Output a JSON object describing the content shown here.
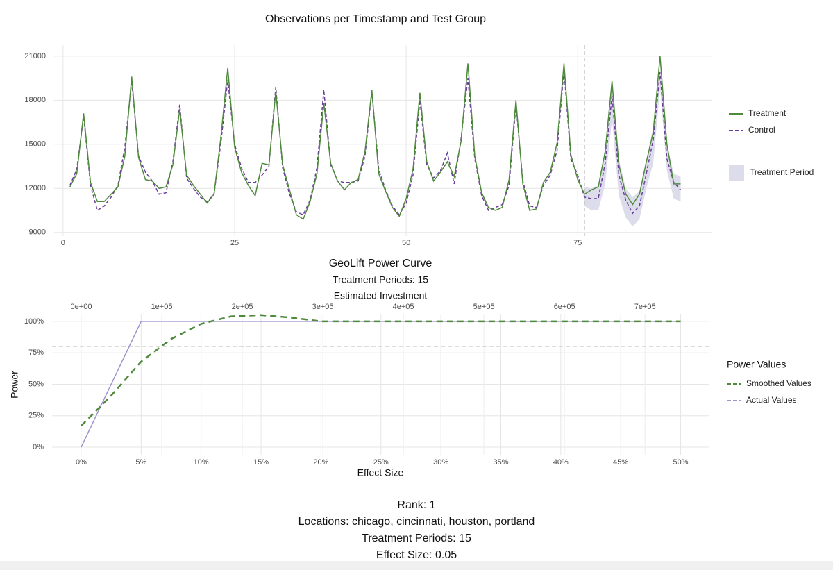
{
  "chart_data": [
    {
      "type": "line",
      "title": "Observations per Timestamp and Test Group",
      "x": [
        1,
        2,
        3,
        4,
        5,
        6,
        7,
        8,
        9,
        10,
        11,
        12,
        13,
        14,
        15,
        16,
        17,
        18,
        19,
        20,
        21,
        22,
        23,
        24,
        25,
        26,
        27,
        28,
        29,
        30,
        31,
        32,
        33,
        34,
        35,
        36,
        37,
        38,
        39,
        40,
        41,
        42,
        43,
        44,
        45,
        46,
        47,
        48,
        49,
        50,
        51,
        52,
        53,
        54,
        55,
        56,
        57,
        58,
        59,
        60,
        61,
        62,
        63,
        64,
        65,
        66,
        67,
        68,
        69,
        70,
        71,
        72,
        73,
        74,
        75,
        76,
        77,
        78,
        79,
        80,
        81,
        82,
        83,
        84,
        85,
        86,
        87,
        88,
        89,
        90
      ],
      "series": [
        {
          "name": "Treatment",
          "color": "#4f8a3c",
          "dashed": false,
          "values": [
            12100,
            13000,
            17100,
            12400,
            11100,
            11100,
            11600,
            12100,
            14200,
            19600,
            14100,
            12600,
            12500,
            12000,
            12100,
            13600,
            17400,
            12900,
            12200,
            11600,
            11000,
            11600,
            15500,
            20200,
            14800,
            13100,
            12200,
            11500,
            13700,
            13600,
            18600,
            13600,
            11900,
            10200,
            9900,
            11100,
            13000,
            17800,
            13700,
            12500,
            11900,
            12400,
            12600,
            14500,
            18700,
            13000,
            11800,
            10700,
            10100,
            11300,
            13300,
            18500,
            13800,
            12500,
            13100,
            13800,
            12800,
            15200,
            20500,
            14200,
            11700,
            10700,
            10500,
            10700,
            12600,
            18000,
            12300,
            10500,
            10600,
            12400,
            13100,
            15100,
            20500,
            14300,
            12600,
            11600,
            11900,
            12100,
            14500,
            19300,
            13600,
            11600,
            10900,
            11600,
            13800,
            15800,
            21000,
            15000,
            12300,
            12300
          ]
        },
        {
          "name": "Control",
          "color": "#6a3d9a",
          "dashed": true,
          "values": [
            12200,
            13300,
            16900,
            12200,
            10500,
            10800,
            11400,
            12200,
            14800,
            19300,
            14200,
            13100,
            12500,
            11600,
            11700,
            13800,
            17700,
            12700,
            12000,
            11400,
            11100,
            11600,
            15100,
            19400,
            15000,
            13400,
            12400,
            12400,
            12900,
            13500,
            18900,
            13400,
            11600,
            10400,
            10200,
            11200,
            13400,
            18700,
            13600,
            12500,
            12400,
            12400,
            12500,
            14200,
            18600,
            13300,
            11900,
            10800,
            10200,
            11000,
            12900,
            18000,
            13600,
            12700,
            13200,
            14400,
            12300,
            15400,
            19500,
            14000,
            11500,
            10500,
            10700,
            10900,
            12200,
            17700,
            12500,
            10800,
            10700,
            12200,
            12900,
            14600,
            20100,
            14000,
            12900,
            11400,
            11300,
            11300,
            13700,
            18300,
            12900,
            11200,
            10300,
            10800,
            13000,
            15300,
            19900,
            14000,
            12400,
            11900
          ]
        }
      ],
      "band": {
        "name": "Treatment Period",
        "color": "#dcdcea",
        "x": [
          76,
          77,
          78,
          79,
          80,
          81,
          82,
          83,
          84,
          85,
          86,
          87,
          88,
          89,
          90
        ],
        "lower": [
          10800,
          10500,
          10500,
          12300,
          16700,
          11500,
          10000,
          9400,
          9900,
          12000,
          13700,
          18800,
          13200,
          11300,
          11100
        ],
        "upper": [
          12100,
          12000,
          12200,
          14700,
          19000,
          14000,
          12000,
          11400,
          11800,
          13900,
          16200,
          20200,
          15000,
          13000,
          12800
        ]
      },
      "vline": 76,
      "xlim": [
        -1.3,
        94.5
      ],
      "xticks": [
        0,
        25,
        50,
        75
      ],
      "ylim": [
        8750,
        21750
      ],
      "yticks": [
        9000,
        12000,
        15000,
        18000,
        21000
      ],
      "grid": true,
      "legend": "right"
    },
    {
      "type": "line",
      "title": "GeoLift Power Curve",
      "subtitle": "Treatment Periods: 15",
      "x_label": "Effect Size",
      "y_label": "Power",
      "x2_label": "Estimated Investment",
      "legend_title": "Power Values",
      "x": [
        0,
        2.5,
        5,
        7.5,
        10,
        12.5,
        15,
        17.5,
        20,
        22.5,
        25,
        27.5,
        30,
        32.5,
        35,
        37.5,
        40,
        42.5,
        45,
        47.5,
        50
      ],
      "series": [
        {
          "name": "Smoothed Values",
          "color": "#4f8a3c",
          "dashed": true,
          "values": [
            17,
            41,
            68,
            86,
            98,
            104,
            105,
            103,
            100,
            100,
            100,
            100,
            100,
            100,
            100,
            100,
            100,
            100,
            100,
            100,
            100
          ]
        },
        {
          "name": "Actual Values",
          "color": "#9d92cc",
          "dashed": false,
          "values": [
            0,
            50,
            100,
            100,
            100,
            100,
            100,
            100,
            100,
            100,
            100,
            100,
            100,
            100,
            100,
            100,
            100,
            100,
            100,
            100,
            100
          ]
        }
      ],
      "hline": 80,
      "xlim": [
        -2.43,
        52.4
      ],
      "xticks": [
        {
          "value": 0,
          "label": "0%"
        },
        {
          "value": 5,
          "label": "5%"
        },
        {
          "value": 10,
          "label": "10%"
        },
        {
          "value": 15,
          "label": "15%"
        },
        {
          "value": 20,
          "label": "20%"
        },
        {
          "value": 25,
          "label": "25%"
        },
        {
          "value": 30,
          "label": "30%"
        },
        {
          "value": 35,
          "label": "35%"
        },
        {
          "value": 40,
          "label": "40%"
        },
        {
          "value": 45,
          "label": "45%"
        },
        {
          "value": 50,
          "label": "50%"
        }
      ],
      "ylim": [
        -6.6,
        106
      ],
      "yticks": [
        {
          "value": 0,
          "label": "0%"
        },
        {
          "value": 25,
          "label": "25%"
        },
        {
          "value": 50,
          "label": "50%"
        },
        {
          "value": 75,
          "label": "75%"
        },
        {
          "value": 100,
          "label": "100%"
        }
      ],
      "x2lim": [
        -36200,
        780000
      ],
      "x2ticks": [
        {
          "value": 0,
          "label": "0e+00"
        },
        {
          "value": 100000,
          "label": "1e+05"
        },
        {
          "value": 200000,
          "label": "2e+05"
        },
        {
          "value": 300000,
          "label": "3e+05"
        },
        {
          "value": 400000,
          "label": "4e+05"
        },
        {
          "value": 500000,
          "label": "5e+05"
        },
        {
          "value": 600000,
          "label": "6e+05"
        },
        {
          "value": 700000,
          "label": "7e+05"
        }
      ],
      "grid": true,
      "legend": "right"
    }
  ],
  "caption": [
    "Rank: 1",
    "Locations: chicago, cincinnati, houston, portland",
    "Treatment Periods: 15",
    "Effect Size:  0.05"
  ]
}
